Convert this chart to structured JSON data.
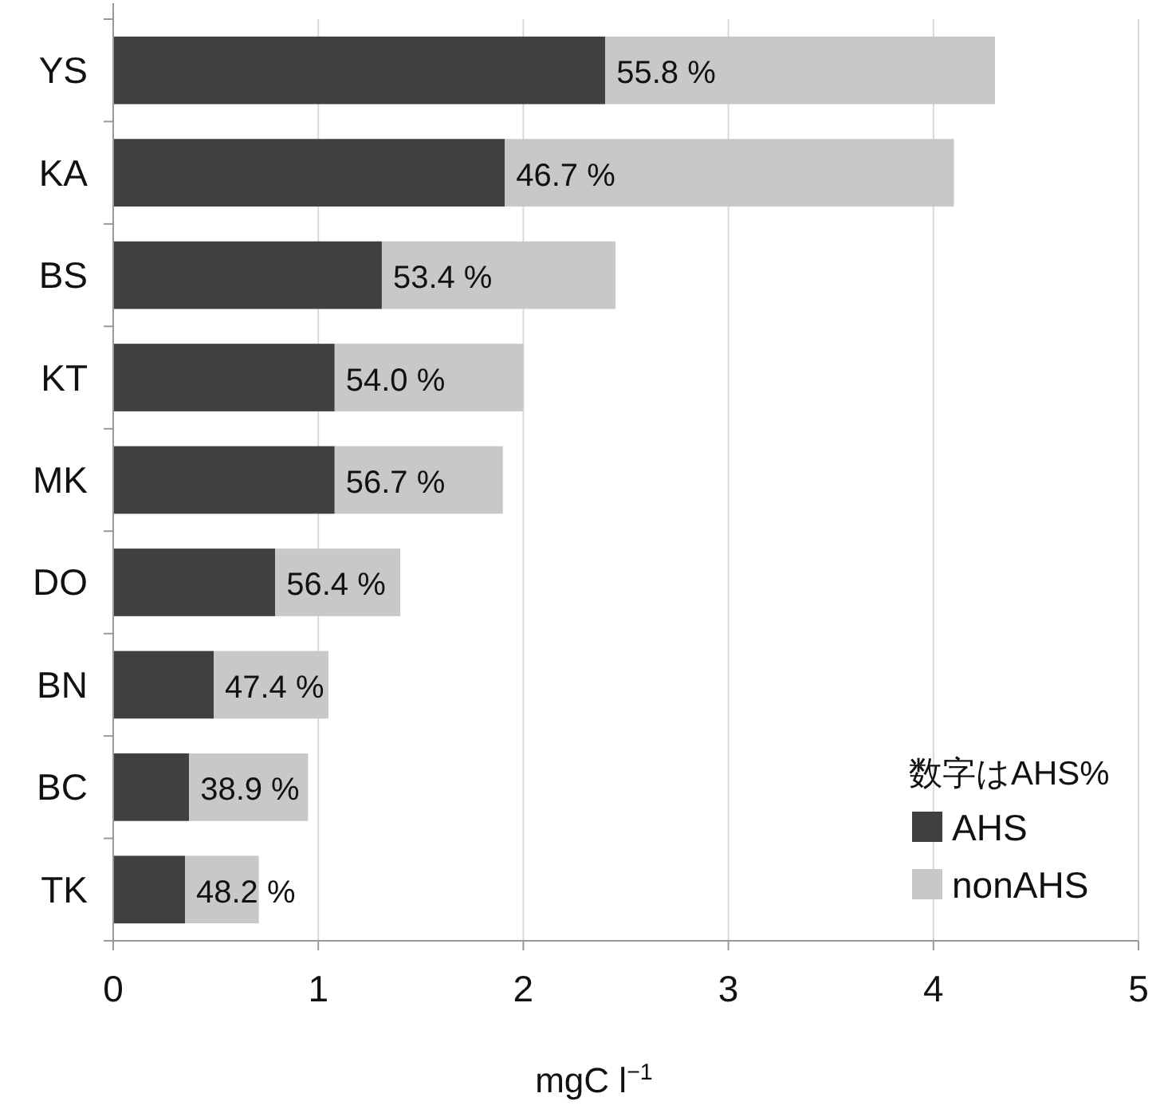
{
  "chart_data": {
    "type": "bar",
    "orientation": "horizontal",
    "stacked": true,
    "categories": [
      "YS",
      "KA",
      "BS",
      "KT",
      "MK",
      "DO",
      "BN",
      "BC",
      "TK"
    ],
    "series": [
      {
        "name": "AHS",
        "color": "#404040",
        "values": [
          2.4,
          1.91,
          1.31,
          1.08,
          1.08,
          0.79,
          0.49,
          0.37,
          0.35
        ]
      },
      {
        "name": "nonAHS",
        "color": "#c8c8c8",
        "values": [
          1.9,
          2.19,
          1.14,
          0.92,
          0.82,
          0.61,
          0.56,
          0.58,
          0.36
        ]
      }
    ],
    "xlim": [
      0,
      5
    ],
    "xticks": [
      0,
      1,
      2,
      3,
      4,
      5
    ],
    "xlabel": "mgC l$^{−1}$",
    "legend_title": "数字はAHS%",
    "legend": "bottom right",
    "grid": "x",
    "annotations": [
      {
        "text": "55.8 %",
        "x": 2.4,
        "y": "YS"
      },
      {
        "text": "46.7 %",
        "x": 1.91,
        "y": "KA"
      },
      {
        "text": "53.4 %",
        "x": 1.31,
        "y": "BS"
      },
      {
        "text": "54.0 %",
        "x": 1.08,
        "y": "KT"
      },
      {
        "text": "56.7 %",
        "x": 1.08,
        "y": "MK"
      },
      {
        "text": "56.4 %",
        "x": 0.79,
        "y": "DO"
      },
      {
        "text": "47.4 %",
        "x": 0.49,
        "y": "BN"
      },
      {
        "text": "38.9 %",
        "x": 0.37,
        "y": "BC"
      },
      {
        "text": "48.2 %",
        "x": 0.35,
        "y": "TK"
      }
    ]
  }
}
